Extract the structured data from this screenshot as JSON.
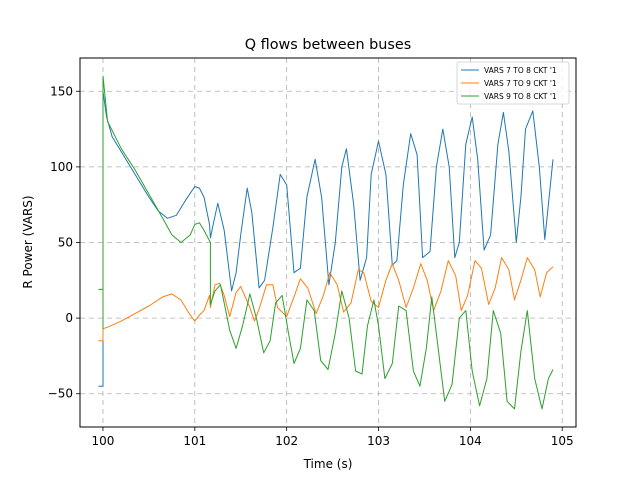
{
  "chart_data": {
    "type": "line",
    "title": "Q flows between buses",
    "xlabel": "Time (s)",
    "ylabel": "R Power (VARS)",
    "xlim": [
      99.75,
      105.15
    ],
    "ylim": [
      -72,
      172
    ],
    "xticks": [
      100,
      101,
      102,
      103,
      104,
      105
    ],
    "xtick_labels": [
      "100",
      "101",
      "102",
      "103",
      "104",
      "105"
    ],
    "yticks": [
      -50,
      0,
      50,
      100,
      150
    ],
    "ytick_labels": [
      "−50",
      "0",
      "50",
      "100",
      "150"
    ],
    "grid": true,
    "legend_position": "top-right",
    "series": [
      {
        "name": "VARS 7 TO 8 CKT '1",
        "color": "#1f77b4",
        "x": [
          99.95,
          100.0,
          100.0,
          100.04,
          100.1,
          100.2,
          100.3,
          100.4,
          100.5,
          100.6,
          100.7,
          100.8,
          100.9,
          101.0,
          101.05,
          101.1,
          101.16,
          101.17,
          101.2,
          101.25,
          101.32,
          101.4,
          101.45,
          101.5,
          101.57,
          101.62,
          101.7,
          101.76,
          101.85,
          101.93,
          102.0,
          102.08,
          102.15,
          102.22,
          102.31,
          102.38,
          102.46,
          102.53,
          102.6,
          102.65,
          102.73,
          102.8,
          102.87,
          102.92,
          103.0,
          103.08,
          103.15,
          103.2,
          103.27,
          103.35,
          103.42,
          103.48,
          103.56,
          103.63,
          103.7,
          103.77,
          103.83,
          103.88,
          103.95,
          104.02,
          104.08,
          104.15,
          104.22,
          104.3,
          104.36,
          104.42,
          104.5,
          104.55,
          104.6,
          104.68,
          104.75,
          104.81,
          104.9
        ],
        "values": [
          -45,
          -45,
          150,
          133,
          120,
          110,
          100,
          90,
          80,
          71,
          66,
          68,
          78,
          87,
          86,
          80,
          62,
          53,
          62,
          76,
          58,
          18,
          30,
          55,
          86,
          70,
          20,
          25,
          60,
          95,
          88,
          30,
          33,
          80,
          105,
          80,
          22,
          50,
          100,
          112,
          75,
          25,
          40,
          95,
          117,
          95,
          35,
          38,
          88,
          122,
          108,
          40,
          44,
          100,
          125,
          100,
          40,
          50,
          115,
          133,
          105,
          45,
          55,
          115,
          136,
          110,
          50,
          80,
          125,
          137,
          100,
          52,
          105
        ]
      },
      {
        "name": "VARS 7 TO 9 CKT '1",
        "color": "#ff7f0e",
        "x": [
          99.95,
          100.0,
          100.0,
          100.05,
          100.2,
          100.35,
          100.5,
          100.65,
          100.75,
          100.85,
          100.95,
          101.0,
          101.05,
          101.1,
          101.16,
          101.17,
          101.22,
          101.27,
          101.32,
          101.38,
          101.45,
          101.5,
          101.6,
          101.65,
          101.7,
          101.78,
          101.85,
          101.9,
          102.0,
          102.08,
          102.15,
          102.23,
          102.32,
          102.4,
          102.47,
          102.55,
          102.62,
          102.7,
          102.78,
          102.84,
          102.92,
          103.0,
          103.08,
          103.15,
          103.22,
          103.3,
          103.38,
          103.46,
          103.53,
          103.6,
          103.68,
          103.76,
          103.84,
          103.9,
          103.97,
          104.05,
          104.12,
          104.2,
          104.27,
          104.34,
          104.42,
          104.48,
          104.55,
          104.62,
          104.7,
          104.76,
          104.83,
          104.9
        ],
        "values": [
          -15,
          -15,
          -7,
          -6,
          -2,
          3,
          8,
          14,
          16,
          12,
          2,
          -2,
          2,
          5,
          15,
          7,
          22,
          23,
          15,
          1,
          17,
          21,
          7,
          -2,
          6,
          22,
          22,
          7,
          1,
          14,
          26,
          20,
          3,
          15,
          30,
          22,
          4,
          10,
          32,
          30,
          11,
          7,
          25,
          36,
          25,
          7,
          20,
          36,
          25,
          5,
          18,
          38,
          28,
          5,
          15,
          38,
          33,
          9,
          20,
          40,
          32,
          12,
          25,
          40,
          32,
          14,
          30,
          34
        ]
      },
      {
        "name": "VARS 9 TO 8 CKT '1",
        "color": "#2ca02c",
        "x": [
          99.95,
          100.0,
          100.0,
          100.0,
          100.05,
          100.2,
          100.35,
          100.5,
          100.65,
          100.75,
          100.85,
          100.95,
          101.0,
          101.05,
          101.1,
          101.17,
          101.17,
          101.22,
          101.28,
          101.32,
          101.38,
          101.45,
          101.52,
          101.6,
          101.67,
          101.75,
          101.82,
          101.88,
          101.95,
          102.02,
          102.08,
          102.15,
          102.22,
          102.3,
          102.37,
          102.45,
          102.53,
          102.6,
          102.68,
          102.75,
          102.82,
          102.88,
          102.95,
          103.0,
          103.07,
          103.15,
          103.22,
          103.3,
          103.38,
          103.45,
          103.52,
          103.58,
          103.65,
          103.72,
          103.8,
          103.88,
          103.95,
          104.02,
          104.1,
          104.18,
          104.25,
          104.33,
          104.4,
          104.48,
          104.55,
          104.62,
          104.7,
          104.78,
          104.85,
          104.9
        ],
        "values": [
          19,
          19,
          -7,
          160,
          130,
          112,
          98,
          82,
          66,
          55,
          50,
          55,
          62,
          63,
          58,
          50,
          9,
          18,
          22,
          10,
          -8,
          -20,
          -5,
          16,
          0,
          -23,
          -15,
          10,
          15,
          -10,
          -30,
          -20,
          12,
          5,
          -28,
          -34,
          -10,
          18,
          0,
          -35,
          -37,
          -5,
          12,
          -5,
          -40,
          -30,
          8,
          5,
          -35,
          -45,
          -20,
          14,
          -20,
          -55,
          -44,
          0,
          5,
          -35,
          -58,
          -40,
          5,
          -10,
          -55,
          -60,
          -22,
          5,
          -40,
          -60,
          -40,
          -34
        ]
      }
    ]
  }
}
